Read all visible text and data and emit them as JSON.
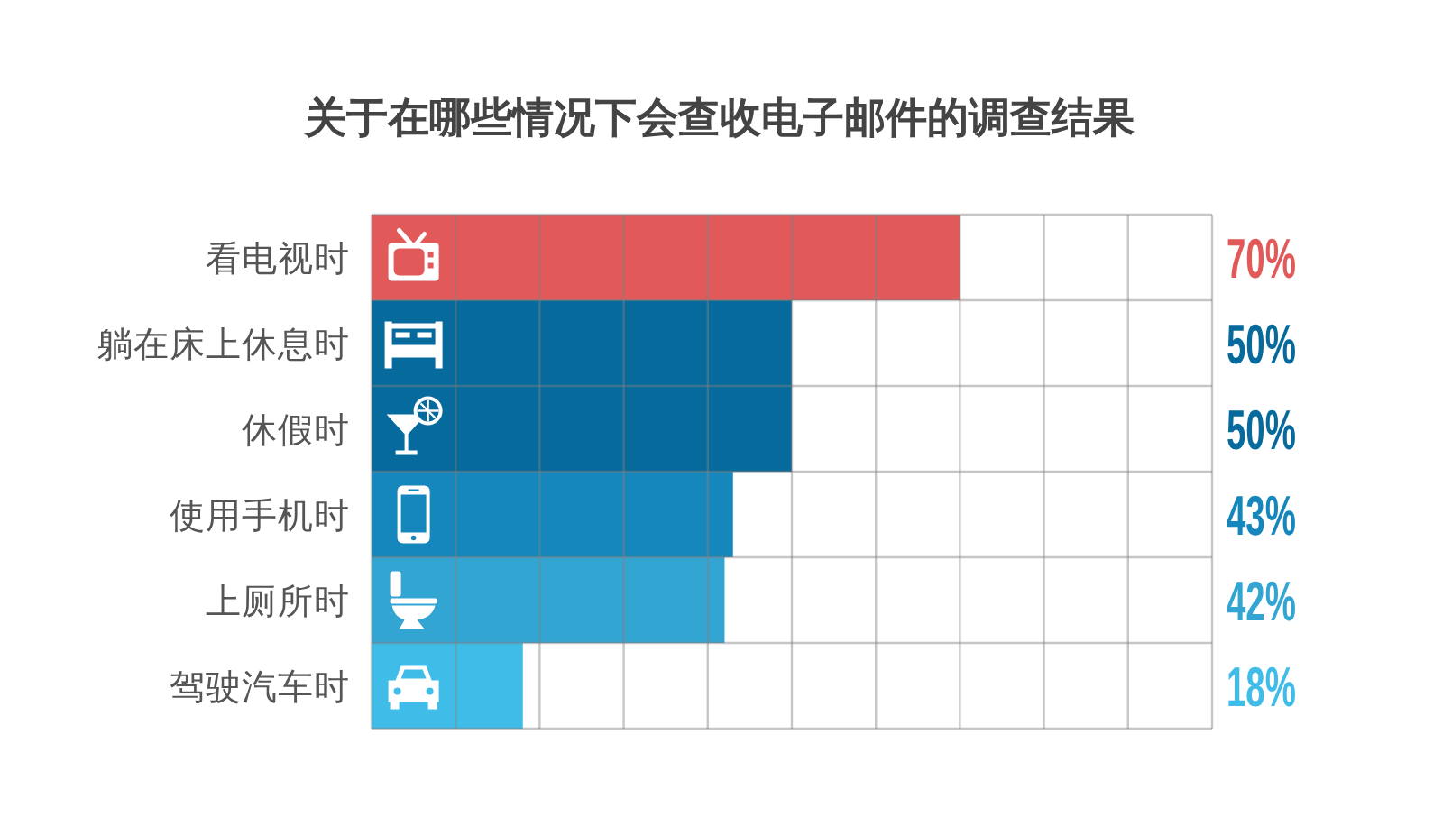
{
  "chart_data": {
    "type": "bar",
    "orientation": "horizontal",
    "title": "关于在哪些情况下会查收电子邮件的调查结果",
    "categories": [
      "看电视时",
      "躺在床上休息时",
      "休假时",
      "使用手机时",
      "上厕所时",
      "驾驶汽车时"
    ],
    "values": [
      70,
      50,
      50,
      43,
      42,
      18
    ],
    "colors": [
      "#e15959",
      "#076a9c",
      "#076a9c",
      "#1687bc",
      "#33a5d3",
      "#3fbce8"
    ],
    "value_labels": [
      "70%",
      "50%",
      "50%",
      "43%",
      "42%",
      "18%"
    ],
    "xlim": [
      0,
      100
    ],
    "xticks": [
      {
        "value": 0,
        "label": null
      },
      {
        "value": 10,
        "label": null
      },
      {
        "value": 20,
        "label": null
      },
      {
        "value": 30,
        "label": null
      },
      {
        "value": 40,
        "label": null
      },
      {
        "value": 50,
        "label": null
      },
      {
        "value": 60,
        "label": null
      },
      {
        "value": 70,
        "label": null
      },
      {
        "value": 80,
        "label": null
      },
      {
        "value": 90,
        "label": null
      },
      {
        "value": 100,
        "label": null
      }
    ],
    "grid": true,
    "tick_labels": "y"
  }
}
